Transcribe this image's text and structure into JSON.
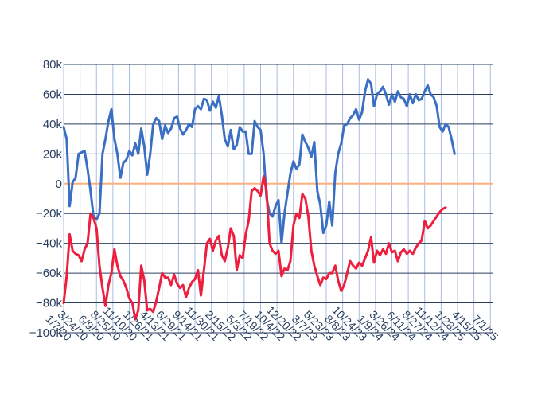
{
  "chart_data": {
    "type": "line",
    "title": "",
    "xlabel": "",
    "ylabel": "",
    "ylim": [
      -100000,
      80000
    ],
    "yticks": [
      {
        "value": 80000,
        "label": "80k"
      },
      {
        "value": 60000,
        "label": "60k"
      },
      {
        "value": 40000,
        "label": "40k"
      },
      {
        "value": 20000,
        "label": "20k"
      },
      {
        "value": 0,
        "label": "0"
      },
      {
        "value": -20000,
        "label": "−20k"
      },
      {
        "value": -40000,
        "label": "−40k"
      },
      {
        "value": -60000,
        "label": "−60k"
      },
      {
        "value": -80000,
        "label": "−80k"
      },
      {
        "value": -100000,
        "label": "−100k"
      }
    ],
    "xrange": [
      "2020-01-07",
      "2025-07-15"
    ],
    "xticks": [
      "1/7/20",
      "3/24/20",
      "6/9/20",
      "8/25/20",
      "11/10/20",
      "1/26/21",
      "4/13/21",
      "6/29/21",
      "9/14/21",
      "11/30/21",
      "2/15/22",
      "5/3/22",
      "7/19/22",
      "10/4/22",
      "12/20/22",
      "3/7/23",
      "5/23/23",
      "8/8/23",
      "10/24/23",
      "1/9/24",
      "3/26/24",
      "6/11/24",
      "8/27/24",
      "11/12/24",
      "1/28/25",
      "4/15/25",
      "7/1/25"
    ],
    "grid": true,
    "zero_line_color": "#ffb07a",
    "series": [
      {
        "color": "#3a6fc4",
        "points": [
          [
            "2020-01-07",
            38000
          ],
          [
            "2020-01-21",
            30000
          ],
          [
            "2020-02-04",
            -15000
          ],
          [
            "2020-02-18",
            1000
          ],
          [
            "2020-03-03",
            4000
          ],
          [
            "2020-03-17",
            20000
          ],
          [
            "2020-03-31",
            21000
          ],
          [
            "2020-04-14",
            22000
          ],
          [
            "2020-04-28",
            10000
          ],
          [
            "2020-05-12",
            -5000
          ],
          [
            "2020-05-26",
            -22000
          ],
          [
            "2020-06-09",
            -24000
          ],
          [
            "2020-06-23",
            -20000
          ],
          [
            "2020-07-07",
            20000
          ],
          [
            "2020-07-21",
            30000
          ],
          [
            "2020-08-04",
            42000
          ],
          [
            "2020-08-18",
            50000
          ],
          [
            "2020-09-01",
            30000
          ],
          [
            "2020-09-15",
            20000
          ],
          [
            "2020-09-29",
            4000
          ],
          [
            "2020-10-13",
            14000
          ],
          [
            "2020-10-27",
            16000
          ],
          [
            "2020-11-10",
            22000
          ],
          [
            "2020-11-24",
            19000
          ],
          [
            "2020-12-08",
            27000
          ],
          [
            "2020-12-22",
            20000
          ],
          [
            "2021-01-05",
            37000
          ],
          [
            "2021-01-19",
            25000
          ],
          [
            "2021-02-02",
            6000
          ],
          [
            "2021-02-16",
            20000
          ],
          [
            "2021-03-02",
            40000
          ],
          [
            "2021-03-16",
            44000
          ],
          [
            "2021-03-30",
            42000
          ],
          [
            "2021-04-13",
            30000
          ],
          [
            "2021-04-27",
            39000
          ],
          [
            "2021-05-11",
            34000
          ],
          [
            "2021-05-25",
            37000
          ],
          [
            "2021-06-08",
            44000
          ],
          [
            "2021-06-22",
            45000
          ],
          [
            "2021-07-06",
            37000
          ],
          [
            "2021-07-20",
            33000
          ],
          [
            "2021-08-03",
            36000
          ],
          [
            "2021-08-17",
            40000
          ],
          [
            "2021-08-31",
            38000
          ],
          [
            "2021-09-14",
            50000
          ],
          [
            "2021-09-28",
            52000
          ],
          [
            "2021-10-12",
            50000
          ],
          [
            "2021-10-26",
            57000
          ],
          [
            "2021-11-09",
            56000
          ],
          [
            "2021-11-23",
            49000
          ],
          [
            "2021-12-07",
            55000
          ],
          [
            "2021-12-21",
            51000
          ],
          [
            "2022-01-04",
            59000
          ],
          [
            "2022-01-18",
            46000
          ],
          [
            "2022-02-01",
            30000
          ],
          [
            "2022-02-15",
            25000
          ],
          [
            "2022-03-01",
            36000
          ],
          [
            "2022-03-15",
            23000
          ],
          [
            "2022-03-29",
            26000
          ],
          [
            "2022-04-12",
            38000
          ],
          [
            "2022-04-26",
            35000
          ],
          [
            "2022-05-10",
            35000
          ],
          [
            "2022-05-24",
            20000
          ],
          [
            "2022-06-07",
            20000
          ],
          [
            "2022-06-21",
            42000
          ],
          [
            "2022-07-05",
            38000
          ],
          [
            "2022-07-19",
            36000
          ],
          [
            "2022-08-02",
            20000
          ],
          [
            "2022-08-16",
            -10000
          ],
          [
            "2022-08-30",
            -20000
          ],
          [
            "2022-09-13",
            -22000
          ],
          [
            "2022-09-27",
            -15000
          ],
          [
            "2022-10-11",
            -11000
          ],
          [
            "2022-10-25",
            -40000
          ],
          [
            "2022-11-08",
            -20000
          ],
          [
            "2022-12-06",
            7000
          ],
          [
            "2022-12-20",
            15000
          ],
          [
            "2023-01-03",
            10000
          ],
          [
            "2023-01-17",
            13000
          ],
          [
            "2023-01-31",
            33000
          ],
          [
            "2023-02-14",
            28000
          ],
          [
            "2023-02-28",
            24000
          ],
          [
            "2023-03-14",
            18000
          ],
          [
            "2023-03-28",
            28000
          ],
          [
            "2023-04-11",
            -5000
          ],
          [
            "2023-04-25",
            -14000
          ],
          [
            "2023-05-09",
            -33000
          ],
          [
            "2023-05-23",
            -28000
          ],
          [
            "2023-06-06",
            -12000
          ],
          [
            "2023-06-20",
            -28000
          ],
          [
            "2023-07-04",
            7000
          ],
          [
            "2023-07-18",
            20000
          ],
          [
            "2023-08-01",
            27000
          ],
          [
            "2023-08-15",
            39000
          ],
          [
            "2023-08-29",
            40000
          ],
          [
            "2023-09-12",
            44000
          ],
          [
            "2023-09-26",
            46000
          ],
          [
            "2023-10-10",
            50000
          ],
          [
            "2023-10-24",
            43000
          ],
          [
            "2023-11-07",
            48000
          ],
          [
            "2023-11-21",
            62000
          ],
          [
            "2023-12-05",
            70000
          ],
          [
            "2023-12-19",
            67000
          ],
          [
            "2024-01-02",
            52000
          ],
          [
            "2024-01-16",
            60000
          ],
          [
            "2024-01-30",
            62000
          ],
          [
            "2024-02-13",
            65000
          ],
          [
            "2024-02-27",
            60000
          ],
          [
            "2024-03-12",
            53000
          ],
          [
            "2024-03-26",
            60000
          ],
          [
            "2024-04-09",
            55000
          ],
          [
            "2024-04-23",
            62000
          ],
          [
            "2024-05-07",
            58000
          ],
          [
            "2024-05-21",
            57000
          ],
          [
            "2024-06-04",
            52000
          ],
          [
            "2024-06-18",
            60000
          ],
          [
            "2024-07-02",
            54000
          ],
          [
            "2024-07-16",
            60000
          ],
          [
            "2024-07-30",
            56000
          ],
          [
            "2024-08-13",
            57000
          ],
          [
            "2024-08-27",
            62000
          ],
          [
            "2024-09-10",
            66000
          ],
          [
            "2024-09-24",
            60000
          ],
          [
            "2024-10-08",
            58000
          ],
          [
            "2024-10-22",
            52000
          ],
          [
            "2024-11-05",
            38000
          ],
          [
            "2024-11-19",
            35000
          ],
          [
            "2024-12-03",
            40000
          ],
          [
            "2024-12-17",
            38000
          ],
          [
            "2024-12-31",
            30000
          ],
          [
            "2025-01-14",
            20000
          ]
        ]
      },
      {
        "color": "#ee1f3e",
        "points": [
          [
            "2020-01-07",
            -80000
          ],
          [
            "2020-01-21",
            -62000
          ],
          [
            "2020-02-04",
            -34000
          ],
          [
            "2020-02-18",
            -45000
          ],
          [
            "2020-03-03",
            -47000
          ],
          [
            "2020-03-17",
            -48000
          ],
          [
            "2020-03-31",
            -52000
          ],
          [
            "2020-04-14",
            -44000
          ],
          [
            "2020-04-28",
            -40000
          ],
          [
            "2020-05-12",
            -20000
          ],
          [
            "2020-05-26",
            -23000
          ],
          [
            "2020-06-09",
            -30000
          ],
          [
            "2020-06-23",
            -55000
          ],
          [
            "2020-07-07",
            -70000
          ],
          [
            "2020-07-21",
            -82000
          ],
          [
            "2020-08-04",
            -68000
          ],
          [
            "2020-08-18",
            -60000
          ],
          [
            "2020-09-01",
            -44000
          ],
          [
            "2020-09-15",
            -55000
          ],
          [
            "2020-09-29",
            -62000
          ],
          [
            "2020-10-13",
            -65000
          ],
          [
            "2020-10-27",
            -70000
          ],
          [
            "2020-11-10",
            -77000
          ],
          [
            "2020-11-24",
            -80000
          ],
          [
            "2020-12-08",
            -91000
          ],
          [
            "2020-12-22",
            -85000
          ],
          [
            "2021-01-05",
            -55000
          ],
          [
            "2021-01-19",
            -65000
          ],
          [
            "2021-02-02",
            -85000
          ],
          [
            "2021-02-16",
            -84000
          ],
          [
            "2021-03-02",
            -86000
          ],
          [
            "2021-03-16",
            -79000
          ],
          [
            "2021-03-30",
            -70000
          ],
          [
            "2021-04-13",
            -60000
          ],
          [
            "2021-04-27",
            -63000
          ],
          [
            "2021-05-11",
            -63000
          ],
          [
            "2021-05-25",
            -68000
          ],
          [
            "2021-06-08",
            -61000
          ],
          [
            "2021-06-22",
            -67000
          ],
          [
            "2021-07-06",
            -70000
          ],
          [
            "2021-07-20",
            -68000
          ],
          [
            "2021-08-03",
            -76000
          ],
          [
            "2021-08-17",
            -70000
          ],
          [
            "2021-08-31",
            -66000
          ],
          [
            "2021-09-14",
            -64000
          ],
          [
            "2021-09-28",
            -58000
          ],
          [
            "2021-10-12",
            -75000
          ],
          [
            "2021-10-26",
            -58000
          ],
          [
            "2021-11-09",
            -40000
          ],
          [
            "2021-11-23",
            -37000
          ],
          [
            "2021-12-07",
            -45000
          ],
          [
            "2021-12-21",
            -38000
          ],
          [
            "2022-01-04",
            -35000
          ],
          [
            "2022-01-18",
            -48000
          ],
          [
            "2022-02-01",
            -52000
          ],
          [
            "2022-02-15",
            -43000
          ],
          [
            "2022-03-01",
            -30000
          ],
          [
            "2022-03-15",
            -35000
          ],
          [
            "2022-03-29",
            -58000
          ],
          [
            "2022-04-12",
            -48000
          ],
          [
            "2022-04-26",
            -50000
          ],
          [
            "2022-05-10",
            -34000
          ],
          [
            "2022-05-24",
            -25000
          ],
          [
            "2022-06-07",
            -5000
          ],
          [
            "2022-06-21",
            -3000
          ],
          [
            "2022-07-05",
            -5000
          ],
          [
            "2022-07-19",
            -8000
          ],
          [
            "2022-08-02",
            5000
          ],
          [
            "2022-08-16",
            -5000
          ],
          [
            "2022-08-30",
            -40000
          ],
          [
            "2022-09-13",
            -45000
          ],
          [
            "2022-09-27",
            -47000
          ],
          [
            "2022-10-11",
            -45000
          ],
          [
            "2022-10-25",
            -62000
          ],
          [
            "2022-11-08",
            -57000
          ],
          [
            "2022-11-22",
            -58000
          ],
          [
            "2022-12-06",
            -52000
          ],
          [
            "2022-12-20",
            -28000
          ],
          [
            "2023-01-03",
            -20000
          ],
          [
            "2023-01-17",
            -23000
          ],
          [
            "2023-01-31",
            -7000
          ],
          [
            "2023-02-14",
            -10000
          ],
          [
            "2023-02-28",
            -22000
          ],
          [
            "2023-03-14",
            -45000
          ],
          [
            "2023-03-28",
            -55000
          ],
          [
            "2023-04-11",
            -62000
          ],
          [
            "2023-04-25",
            -68000
          ],
          [
            "2023-05-09",
            -63000
          ],
          [
            "2023-05-23",
            -64000
          ],
          [
            "2023-06-06",
            -60000
          ],
          [
            "2023-06-20",
            -60000
          ],
          [
            "2023-07-04",
            -55000
          ],
          [
            "2023-07-18",
            -65000
          ],
          [
            "2023-08-01",
            -72000
          ],
          [
            "2023-08-15",
            -68000
          ],
          [
            "2023-08-29",
            -60000
          ],
          [
            "2023-09-12",
            -52000
          ],
          [
            "2023-09-26",
            -55000
          ],
          [
            "2023-10-10",
            -57000
          ],
          [
            "2023-10-24",
            -53000
          ],
          [
            "2023-11-07",
            -55000
          ],
          [
            "2023-11-21",
            -50000
          ],
          [
            "2023-12-05",
            -45000
          ],
          [
            "2023-12-19",
            -36000
          ],
          [
            "2024-01-02",
            -53000
          ],
          [
            "2024-01-16",
            -45000
          ],
          [
            "2024-01-30",
            -48000
          ],
          [
            "2024-02-13",
            -44000
          ],
          [
            "2024-02-27",
            -47000
          ],
          [
            "2024-03-12",
            -40000
          ],
          [
            "2024-03-26",
            -46000
          ],
          [
            "2024-04-09",
            -45000
          ],
          [
            "2024-04-23",
            -52000
          ],
          [
            "2024-05-07",
            -46000
          ],
          [
            "2024-05-21",
            -44000
          ],
          [
            "2024-06-04",
            -47000
          ],
          [
            "2024-06-18",
            -45000
          ],
          [
            "2024-07-02",
            -47000
          ],
          [
            "2024-07-16",
            -43000
          ],
          [
            "2024-07-30",
            -40000
          ],
          [
            "2024-08-13",
            -38000
          ],
          [
            "2024-08-27",
            -25000
          ],
          [
            "2024-09-10",
            -30000
          ],
          [
            "2024-09-24",
            -28000
          ],
          [
            "2024-10-08",
            -25000
          ],
          [
            "2024-10-22",
            -22000
          ],
          [
            "2024-11-05",
            -19000
          ],
          [
            "2024-11-19",
            -17000
          ],
          [
            "2024-12-03",
            -16000
          ]
        ]
      }
    ]
  }
}
